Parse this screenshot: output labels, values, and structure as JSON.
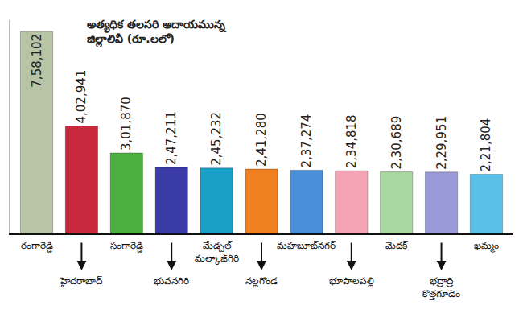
{
  "chart_data": {
    "type": "bar",
    "title": "అత్యధిక తలసరి ఆదాయమున్న\nజిల్లాలివీ (రూ.లలో)",
    "categories": [
      "రంగారెడ్డి",
      "హైదరాబాద్",
      "సంగారెడ్డి",
      "భువనగిరి",
      "మేడ్చల్\nమల్కాజ్‌గిరి",
      "నల్లగొండ",
      "మహబూబ్‌నగర్",
      "భూపాలపల్లి",
      "మెదక్",
      "భద్రాద్రి\nకొత్తగూడెం",
      "ఖమ్మం"
    ],
    "values": [
      758102,
      402941,
      301870,
      247211,
      245232,
      241280,
      237274,
      234818,
      230689,
      229951,
      221804
    ],
    "value_labels": [
      "7,58,102",
      "4,02,941",
      "3,01,870",
      "2,47,211",
      "2,45,232",
      "2,41,280",
      "2,37,274",
      "2,34,818",
      "2,30,689",
      "2,29,951",
      "2,21,804"
    ],
    "colors": [
      "#b7c4a6",
      "#c8283c",
      "#4caf3f",
      "#3b3ba8",
      "#1a9fc9",
      "#f08020",
      "#4a8fd8",
      "#f4a3b4",
      "#a8d8a0",
      "#9a9ad8",
      "#5bc0e8"
    ],
    "ylim": [
      0,
      800000
    ],
    "data_labels": true,
    "tick_labels": "x",
    "grid": false
  }
}
